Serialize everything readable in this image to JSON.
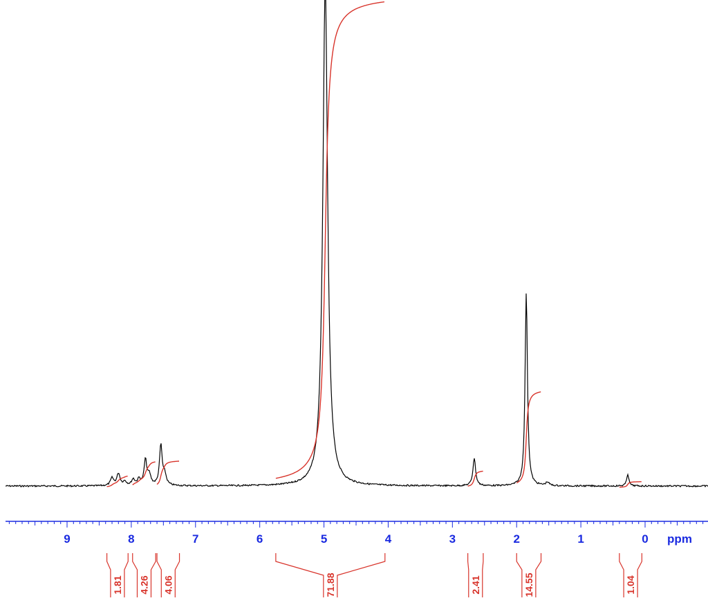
{
  "colors": {
    "spectrum": "#000000",
    "integral": "#d8332a",
    "axis": "#1a2ae0"
  },
  "chart_data": {
    "type": "line",
    "title": "",
    "xlabel": "ppm",
    "ylabel": "",
    "x_reversed": true,
    "xlim": [
      9.95,
      -0.95
    ],
    "x_ticks": [
      "9",
      "8",
      "7",
      "6",
      "5",
      "4",
      "3",
      "2",
      "1",
      "0"
    ],
    "peaks": [
      {
        "shift": 8.3,
        "height": 0.015,
        "width": 0.03
      },
      {
        "shift": 8.2,
        "height": 0.024,
        "width": 0.03
      },
      {
        "shift": 8.1,
        "height": 0.008,
        "width": 0.03
      },
      {
        "shift": 7.97,
        "height": 0.012,
        "width": 0.03
      },
      {
        "shift": 7.88,
        "height": 0.012,
        "width": 0.03
      },
      {
        "shift": 7.78,
        "height": 0.05,
        "width": 0.025
      },
      {
        "shift": 7.72,
        "height": 0.02,
        "width": 0.03
      },
      {
        "shift": 7.54,
        "height": 0.08,
        "width": 0.025
      },
      {
        "shift": 7.48,
        "height": 0.02,
        "width": 0.03
      },
      {
        "shift": 4.98,
        "height": 1.0,
        "width": 0.045
      },
      {
        "shift": 2.66,
        "height": 0.055,
        "width": 0.025
      },
      {
        "shift": 1.85,
        "height": 0.385,
        "width": 0.022
      },
      {
        "shift": 1.52,
        "height": 0.007,
        "width": 0.03
      },
      {
        "shift": 0.27,
        "height": 0.024,
        "width": 0.02
      }
    ],
    "integrals": [
      {
        "label": "1.81",
        "from": 8.38,
        "to": 8.05,
        "rise": 0.025
      },
      {
        "label": "4.26",
        "from": 7.98,
        "to": 7.62,
        "rise": 0.055
      },
      {
        "label": "4.06",
        "from": 7.6,
        "to": 7.25,
        "rise": 0.055
      },
      {
        "label": "71.88",
        "from": 5.75,
        "to": 4.05,
        "rise": 1.0
      },
      {
        "label": "2.41",
        "from": 2.76,
        "to": 2.52,
        "rise": 0.035
      },
      {
        "label": "14.55",
        "from": 2.0,
        "to": 1.62,
        "rise": 0.2
      },
      {
        "label": "1.04",
        "from": 0.4,
        "to": 0.05,
        "rise": 0.012
      }
    ]
  }
}
